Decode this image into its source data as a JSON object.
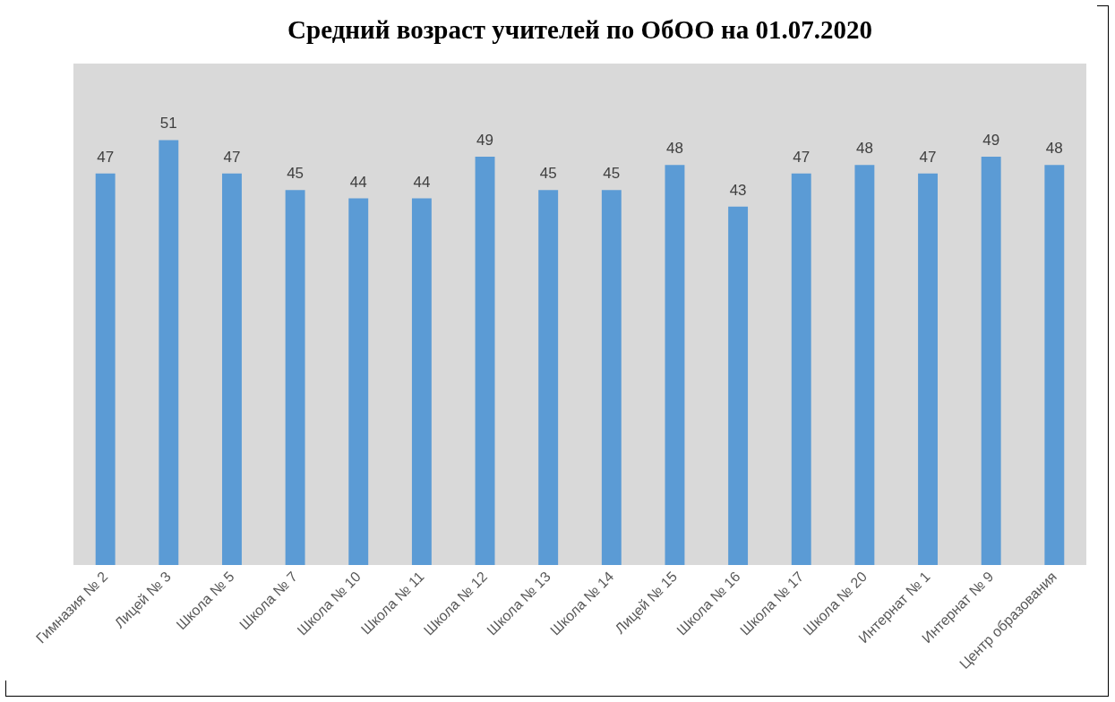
{
  "chart_data": {
    "type": "bar",
    "title": "Средний возраст учителей по ОбОО на 01.07.2020",
    "categories": [
      "Гимназия № 2",
      "Лицей № 3",
      "Школа № 5",
      "Школа № 7",
      "Школа № 10",
      "Школа № 11",
      "Школа № 12",
      "Школа № 13",
      "Школа № 14",
      "Лицей № 15",
      "Школа № 16",
      "Школа № 17",
      "Школа № 20",
      "Интернат № 1",
      "Интернат № 9",
      "Центр образования"
    ],
    "values": [
      47,
      51,
      47,
      45,
      44,
      44,
      49,
      45,
      45,
      48,
      43,
      47,
      48,
      47,
      49,
      48
    ],
    "color": "#5b9bd5",
    "data_labels": true
  }
}
